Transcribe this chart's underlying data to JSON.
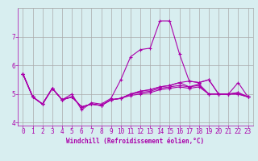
{
  "x": [
    0,
    1,
    2,
    3,
    4,
    5,
    6,
    7,
    8,
    9,
    10,
    11,
    12,
    13,
    14,
    15,
    16,
    17,
    18,
    19,
    20,
    21,
    22,
    23
  ],
  "lines": [
    [
      5.7,
      4.9,
      4.65,
      5.2,
      4.8,
      5.0,
      4.45,
      4.7,
      4.65,
      4.85,
      5.5,
      6.3,
      6.55,
      6.6,
      7.55,
      7.55,
      6.4,
      5.45,
      5.4,
      5.5,
      5.0,
      5.0,
      5.4,
      4.9
    ],
    [
      5.7,
      4.9,
      4.65,
      5.2,
      4.8,
      4.9,
      4.55,
      4.65,
      4.6,
      4.8,
      4.85,
      5.0,
      5.1,
      5.15,
      5.25,
      5.3,
      5.4,
      5.45,
      5.4,
      5.5,
      5.0,
      5.0,
      5.05,
      4.9
    ],
    [
      5.7,
      4.9,
      4.65,
      5.2,
      4.8,
      4.9,
      4.55,
      4.65,
      4.6,
      4.8,
      4.85,
      5.0,
      5.1,
      5.15,
      5.25,
      5.3,
      5.4,
      5.25,
      5.35,
      5.0,
      5.0,
      5.0,
      5.05,
      4.9
    ],
    [
      5.7,
      4.9,
      4.65,
      5.2,
      4.8,
      4.9,
      4.55,
      4.65,
      4.6,
      4.8,
      4.85,
      5.0,
      5.05,
      5.1,
      5.2,
      5.25,
      5.3,
      5.25,
      5.3,
      5.0,
      5.0,
      5.0,
      5.0,
      4.9
    ],
    [
      5.7,
      4.9,
      4.65,
      5.2,
      4.8,
      4.9,
      4.55,
      4.65,
      4.6,
      4.8,
      4.85,
      4.95,
      5.0,
      5.05,
      5.15,
      5.2,
      5.25,
      5.2,
      5.25,
      5.0,
      5.0,
      5.0,
      5.0,
      4.9
    ]
  ],
  "line_color": "#aa00aa",
  "marker": "+",
  "markersize": 3,
  "linewidth": 0.8,
  "bg_color": "#d8eef0",
  "grid_color": "#aaaaaa",
  "xlabel": "Windchill (Refroidissement éolien,°C)",
  "xlabel_color": "#aa00aa",
  "xlabel_fontsize": 5.5,
  "xtick_labels": [
    "0",
    "1",
    "2",
    "3",
    "4",
    "5",
    "6",
    "7",
    "8",
    "9",
    "10",
    "11",
    "12",
    "13",
    "14",
    "15",
    "16",
    "17",
    "18",
    "19",
    "20",
    "21",
    "22",
    "23"
  ],
  "ytick_labels": [
    "4",
    "5",
    "6",
    "7"
  ],
  "ylim": [
    3.9,
    8.0
  ],
  "xlim": [
    -0.5,
    23.5
  ],
  "tick_fontsize": 5.5,
  "tick_color": "#aa00aa"
}
